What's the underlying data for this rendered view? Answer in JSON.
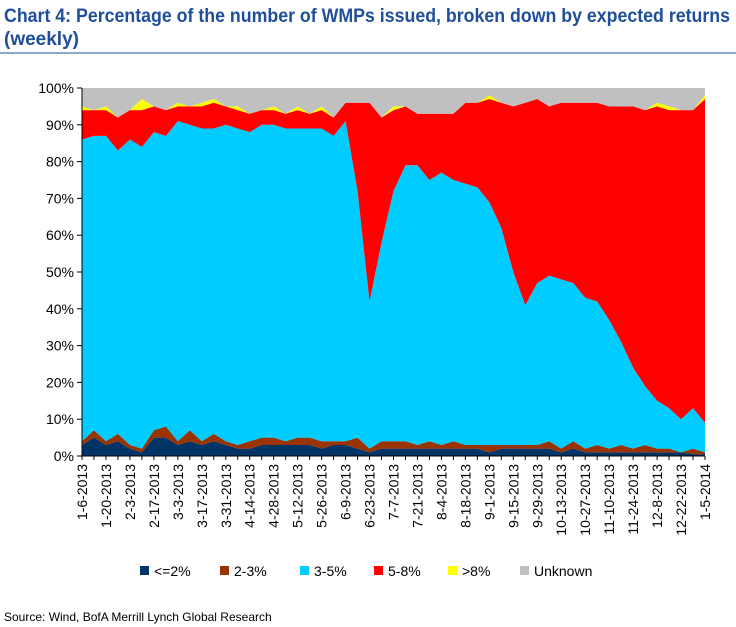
{
  "chart_data": {
    "type": "stacked_area",
    "title": [
      "Chart 4: Percentage of the number of WMPs issued, broken down by expected returns",
      "(weekly)"
    ],
    "source": "Source: Wind, BofA Merrill Lynch Global Research",
    "categories": [
      "1-6-2013",
      null,
      "1-20-2013",
      null,
      "2-3-2013",
      null,
      "2-17-2013",
      null,
      "3-3-2013",
      null,
      "3-17-2013",
      null,
      "3-31-2013",
      null,
      "4-14-2013",
      null,
      "4-28-2013",
      null,
      "5-12-2013",
      null,
      "5-26-2013",
      null,
      "6-9-2013",
      null,
      "6-23-2013",
      null,
      "7-7-2013",
      null,
      "7-21-2013",
      null,
      "8-4-2013",
      null,
      "8-18-2013",
      null,
      "9-1-2013",
      null,
      "9-15-2013",
      null,
      "9-29-2013",
      null,
      "10-13-2013",
      null,
      "10-27-2013",
      null,
      "11-10-2013",
      null,
      "11-24-2013",
      null,
      "12-8-2013",
      null,
      "12-22-2013",
      null,
      "1-5-2014"
    ],
    "series": [
      {
        "name": "<=2%",
        "color": "#003366",
        "values": [
          3,
          5,
          3,
          4,
          2,
          1,
          5,
          5,
          3,
          4,
          3,
          4,
          3,
          2,
          2,
          3,
          3,
          3,
          3,
          3,
          2,
          3,
          3,
          2,
          1,
          2,
          2,
          2,
          2,
          2,
          2,
          2,
          2,
          2,
          1,
          2,
          2,
          2,
          2,
          2,
          1,
          2,
          1,
          1,
          1,
          1,
          1,
          1,
          1,
          1,
          1,
          0.5,
          0.5
        ]
      },
      {
        "name": "2-3%",
        "color": "#993300",
        "values": [
          1,
          2,
          1,
          2,
          1,
          1,
          2,
          3,
          1,
          3,
          1,
          2,
          1,
          1,
          2,
          2,
          2,
          1,
          2,
          2,
          2,
          1,
          1,
          3,
          1,
          2,
          2,
          2,
          1,
          2,
          1,
          2,
          1,
          1,
          2,
          1,
          1,
          1,
          1,
          2,
          1,
          2,
          1,
          2,
          1,
          2,
          1,
          2,
          1,
          1,
          0,
          1.5,
          0.5
        ]
      },
      {
        "name": "3-5%",
        "color": "#00ccff",
        "values": [
          82,
          80,
          83,
          77,
          83,
          82,
          81,
          79,
          87,
          83,
          85,
          83,
          86,
          86,
          84,
          85,
          85,
          85,
          84,
          84,
          85,
          83,
          87,
          67,
          40,
          54,
          68,
          75,
          76,
          71,
          74,
          71,
          71,
          70,
          66,
          59,
          47,
          38,
          44,
          45,
          46,
          43,
          41,
          39,
          35,
          28,
          22,
          16,
          13,
          11,
          9,
          11,
          8
        ]
      },
      {
        "name": "5-8%",
        "color": "#ff0000",
        "values": [
          8,
          7,
          7,
          9,
          8,
          10,
          7,
          7,
          4,
          5,
          6,
          7,
          5,
          5,
          5,
          4,
          4,
          4,
          5,
          4,
          5,
          5,
          5,
          24,
          54,
          34,
          22,
          16,
          14,
          18,
          16,
          18,
          22,
          23,
          28,
          34,
          45,
          55,
          50,
          46,
          48,
          49,
          53,
          54,
          58,
          64,
          71,
          75,
          80,
          81,
          84,
          81,
          88
        ]
      },
      {
        "name": ">8%",
        "color": "#ffff00",
        "values": [
          1,
          0,
          1,
          0,
          0,
          3,
          0,
          0,
          1,
          0,
          1,
          1,
          0,
          1,
          0,
          0,
          1,
          0,
          1,
          0,
          1,
          0,
          0,
          0,
          0,
          0,
          1,
          0,
          0,
          0,
          0,
          0,
          0,
          0,
          1,
          0,
          0,
          0,
          0,
          0,
          0,
          0,
          0,
          0,
          0,
          0,
          0,
          0,
          1,
          1,
          0,
          0,
          1
        ]
      },
      {
        "name": "Unknown",
        "color": "#c0c0c0",
        "values": [
          5,
          6,
          5,
          8,
          6,
          3,
          5,
          6,
          4,
          5,
          4,
          3,
          5,
          5,
          7,
          6,
          5,
          7,
          5,
          7,
          5,
          8,
          4,
          4,
          4,
          8,
          5,
          5,
          7,
          7,
          7,
          7,
          4,
          4,
          2,
          4,
          5,
          4,
          3,
          5,
          4,
          4,
          4,
          4,
          5,
          5,
          5,
          6,
          4,
          5,
          6,
          6,
          2
        ]
      }
    ],
    "ylim": [
      0,
      100
    ],
    "yticks": [
      {
        "value": 0,
        "label": "0%"
      },
      {
        "value": 10,
        "label": "10%"
      },
      {
        "value": 20,
        "label": "20%"
      },
      {
        "value": 30,
        "label": "30%"
      },
      {
        "value": 40,
        "label": "40%"
      },
      {
        "value": 50,
        "label": "50%"
      },
      {
        "value": 60,
        "label": "60%"
      },
      {
        "value": 70,
        "label": "70%"
      },
      {
        "value": 80,
        "label": "80%"
      },
      {
        "value": 90,
        "label": "90%"
      },
      {
        "value": 100,
        "label": "100%"
      }
    ],
    "grid": false,
    "legend": "bottom"
  }
}
